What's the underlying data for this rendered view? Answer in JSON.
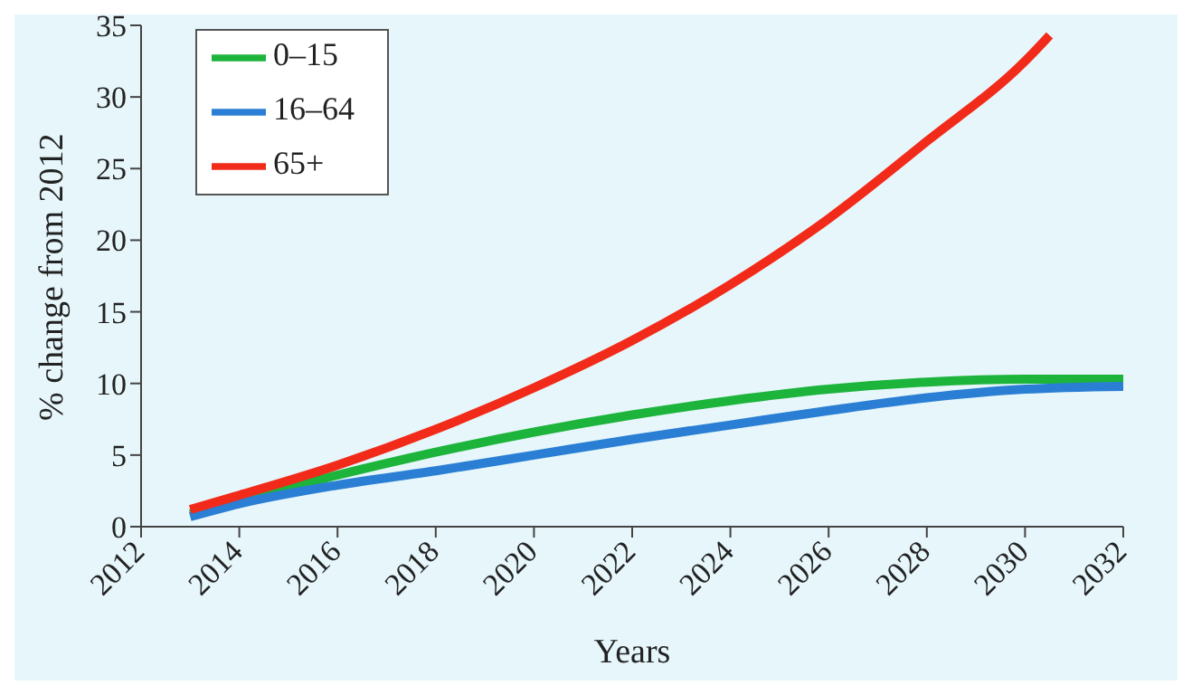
{
  "chart_data": {
    "type": "line",
    "xlabel": "Years",
    "ylabel": "% change from 2012",
    "xlim": [
      2012,
      2032
    ],
    "xticks": [
      2012,
      2014,
      2016,
      2018,
      2020,
      2022,
      2024,
      2026,
      2028,
      2030,
      2032
    ],
    "ylim": [
      0,
      35
    ],
    "yticks": [
      0,
      5,
      10,
      15,
      20,
      25,
      30,
      35
    ],
    "grid": false,
    "legend": "top left",
    "marker": "none",
    "line_style": "solid",
    "series": [
      {
        "name": "0–15",
        "color": "#1db43c",
        "x": [
          2013,
          2014,
          2016,
          2018,
          2020,
          2022,
          2024,
          2026,
          2028,
          2030,
          2032
        ],
        "values": [
          0.9,
          1.8,
          3.6,
          5.2,
          6.6,
          7.8,
          8.8,
          9.6,
          10.1,
          10.3,
          10.3
        ]
      },
      {
        "name": "16–64",
        "color": "#2a7fd4",
        "x": [
          2013,
          2014,
          2016,
          2018,
          2020,
          2022,
          2024,
          2026,
          2028,
          2030,
          2032
        ],
        "values": [
          0.7,
          1.6,
          2.9,
          3.9,
          5.0,
          6.1,
          7.1,
          8.1,
          9.0,
          9.6,
          9.8
        ]
      },
      {
        "name": "65+",
        "color": "#f22a1a",
        "x": [
          2013,
          2014,
          2016,
          2018,
          2020,
          2022,
          2024,
          2026,
          2028,
          2030,
          2030.5
        ],
        "values": [
          1.2,
          2.2,
          4.3,
          6.8,
          9.7,
          13.0,
          16.9,
          21.5,
          26.9,
          32.5,
          34.3
        ]
      }
    ]
  }
}
